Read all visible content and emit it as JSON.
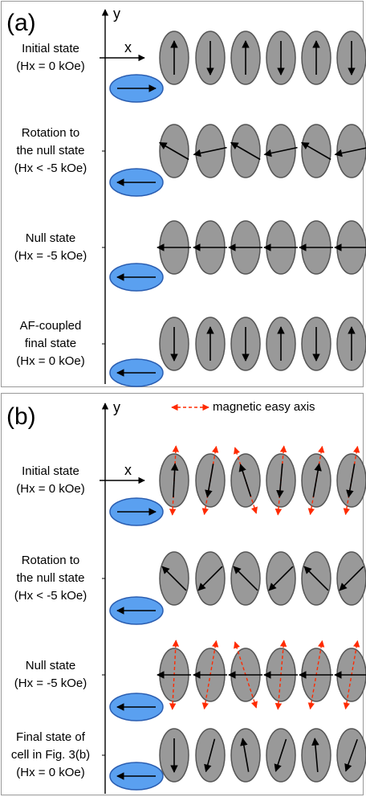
{
  "panels": [
    {
      "label": "(a)",
      "x_axis": "x",
      "y_axis": "y",
      "rows": [
        {
          "label_lines": [
            "Initial state",
            "(Hx = 0 kOe)"
          ]
        },
        {
          "label_lines": [
            "Rotation to",
            "the null state",
            "(Hx < -5 kOe)"
          ]
        },
        {
          "label_lines": [
            "Null state",
            "(Hx = -5 kOe)"
          ]
        },
        {
          "label_lines": [
            "AF-coupled",
            "final state",
            "(Hx = 0 kOe)"
          ]
        }
      ]
    },
    {
      "label": "(b)",
      "x_axis": "x",
      "y_axis": "y",
      "legend": "magnetic easy axis",
      "rows": [
        {
          "label_lines": [
            "Initial state",
            "(Hx = 0 kOe)"
          ]
        },
        {
          "label_lines": [
            "Rotation to",
            "the null state",
            "(Hx < -5 kOe)"
          ]
        },
        {
          "label_lines": [
            "Null state",
            "(Hx = -5 kOe)"
          ]
        },
        {
          "label_lines": [
            "Final state of",
            "cell in Fig. 3(b)",
            "(Hx = 0 kOe)"
          ]
        }
      ]
    }
  ]
}
